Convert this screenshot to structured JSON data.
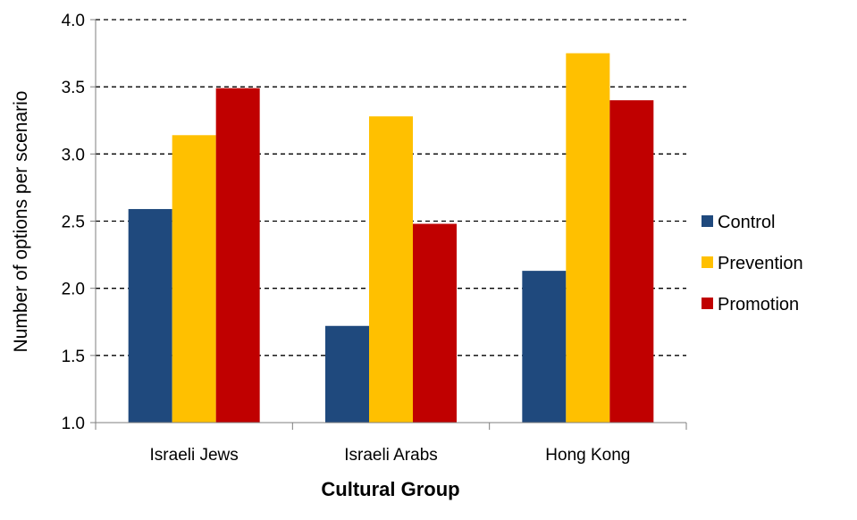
{
  "chart_data": {
    "type": "bar",
    "title": "",
    "xlabel": "Cultural Group",
    "ylabel": "Number of options per scenario",
    "ylim": [
      1.0,
      4.0
    ],
    "yticks": [
      "1.0",
      "1.5",
      "2.0",
      "2.5",
      "3.0",
      "3.5",
      "4.0"
    ],
    "categories": [
      "Israeli Jews",
      "Israeli Arabs",
      "Hong Kong"
    ],
    "series": [
      {
        "name": "Control",
        "color": "#1f497d",
        "values": [
          2.59,
          1.72,
          2.13
        ]
      },
      {
        "name": "Prevention",
        "color": "#ffc000",
        "values": [
          3.14,
          3.28,
          3.75
        ]
      },
      {
        "name": "Promotion",
        "color": "#c00000",
        "values": [
          3.49,
          2.48,
          3.4
        ]
      }
    ],
    "grid": "horizontal dashed",
    "legend": "right"
  }
}
